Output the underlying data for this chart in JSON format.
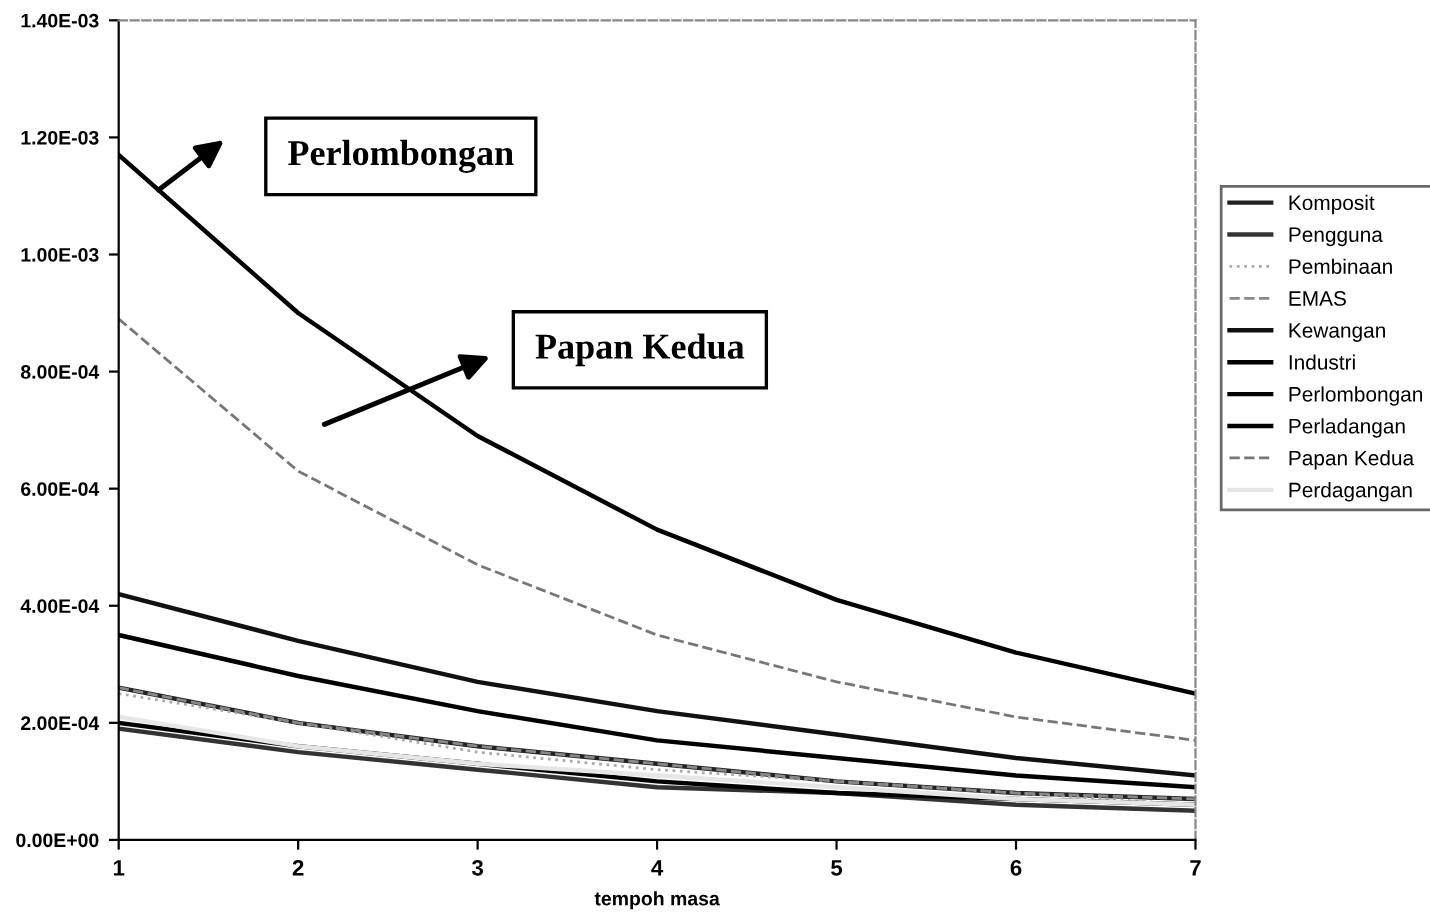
{
  "chart_data": {
    "type": "line",
    "xlabel": "tempoh masa",
    "x": [
      1,
      2,
      3,
      4,
      5,
      6,
      7
    ],
    "series": [
      {
        "name": "Komposit",
        "color": "#222222",
        "line_style": "solid",
        "values": [
          0.00026,
          0.0002,
          0.00016,
          0.00013,
          0.0001,
          8e-05,
          7e-05
        ]
      },
      {
        "name": "Pengguna",
        "color": "#333333",
        "line_style": "solid",
        "values": [
          0.00019,
          0.00015,
          0.00012,
          9e-05,
          8e-05,
          6e-05,
          5e-05
        ]
      },
      {
        "name": "Pembinaan",
        "color": "#aaaaaa",
        "line_style": "dotted",
        "values": [
          0.00025,
          0.0002,
          0.00015,
          0.00012,
          0.0001,
          8e-05,
          6e-05
        ]
      },
      {
        "name": "EMAS",
        "color": "#888888",
        "line_style": "dashed",
        "values": [
          0.00026,
          0.0002,
          0.00016,
          0.00013,
          0.0001,
          8e-05,
          7e-05
        ]
      },
      {
        "name": "Kewangan",
        "color": "#111111",
        "line_style": "solid",
        "values": [
          0.00042,
          0.00034,
          0.00027,
          0.00022,
          0.00018,
          0.00014,
          0.00011
        ]
      },
      {
        "name": "Industri",
        "color": "#000000",
        "line_style": "solid",
        "values": [
          0.0002,
          0.00016,
          0.00013,
          0.0001,
          8e-05,
          7e-05,
          6e-05
        ]
      },
      {
        "name": "Perlombongan",
        "color": "#000000",
        "line_style": "solid",
        "values": [
          0.00117,
          0.0009,
          0.00069,
          0.00053,
          0.00041,
          0.00032,
          0.00025
        ]
      },
      {
        "name": "Perladangan",
        "color": "#000000",
        "line_style": "solid",
        "values": [
          0.00035,
          0.00028,
          0.00022,
          0.00017,
          0.00014,
          0.00011,
          9e-05
        ]
      },
      {
        "name": "Papan Kedua",
        "color": "#777777",
        "line_style": "dashed",
        "values": [
          0.00089,
          0.00063,
          0.00047,
          0.00035,
          0.00027,
          0.00021,
          0.00017
        ]
      },
      {
        "name": "Perdagangan",
        "color": "#e6e6e6",
        "line_style": "solid",
        "values": [
          0.00021,
          0.00016,
          0.00013,
          0.00011,
          9e-05,
          7e-05,
          6e-05
        ]
      }
    ],
    "xlim": [
      1,
      7
    ],
    "xticks": [
      1,
      2,
      3,
      4,
      5,
      6,
      7
    ],
    "ylim": [
      0,
      0.0014
    ],
    "yticks": [
      {
        "value": 0,
        "label": "0.00E+00"
      },
      {
        "value": 0.0002,
        "label": "2.00E-04"
      },
      {
        "value": 0.0004,
        "label": "4.00E-04"
      },
      {
        "value": 0.0006,
        "label": "6.00E-04"
      },
      {
        "value": 0.0008,
        "label": "8.00E-04"
      },
      {
        "value": 0.001,
        "label": "1.00E-03"
      },
      {
        "value": 0.0012,
        "label": "1.20E-03"
      },
      {
        "value": 0.0014,
        "label": "1.40E-03"
      }
    ],
    "annotations": [
      "Perlombongan",
      "Papan Kedua"
    ],
    "grid": false,
    "legend": "right",
    "marker": "none"
  }
}
